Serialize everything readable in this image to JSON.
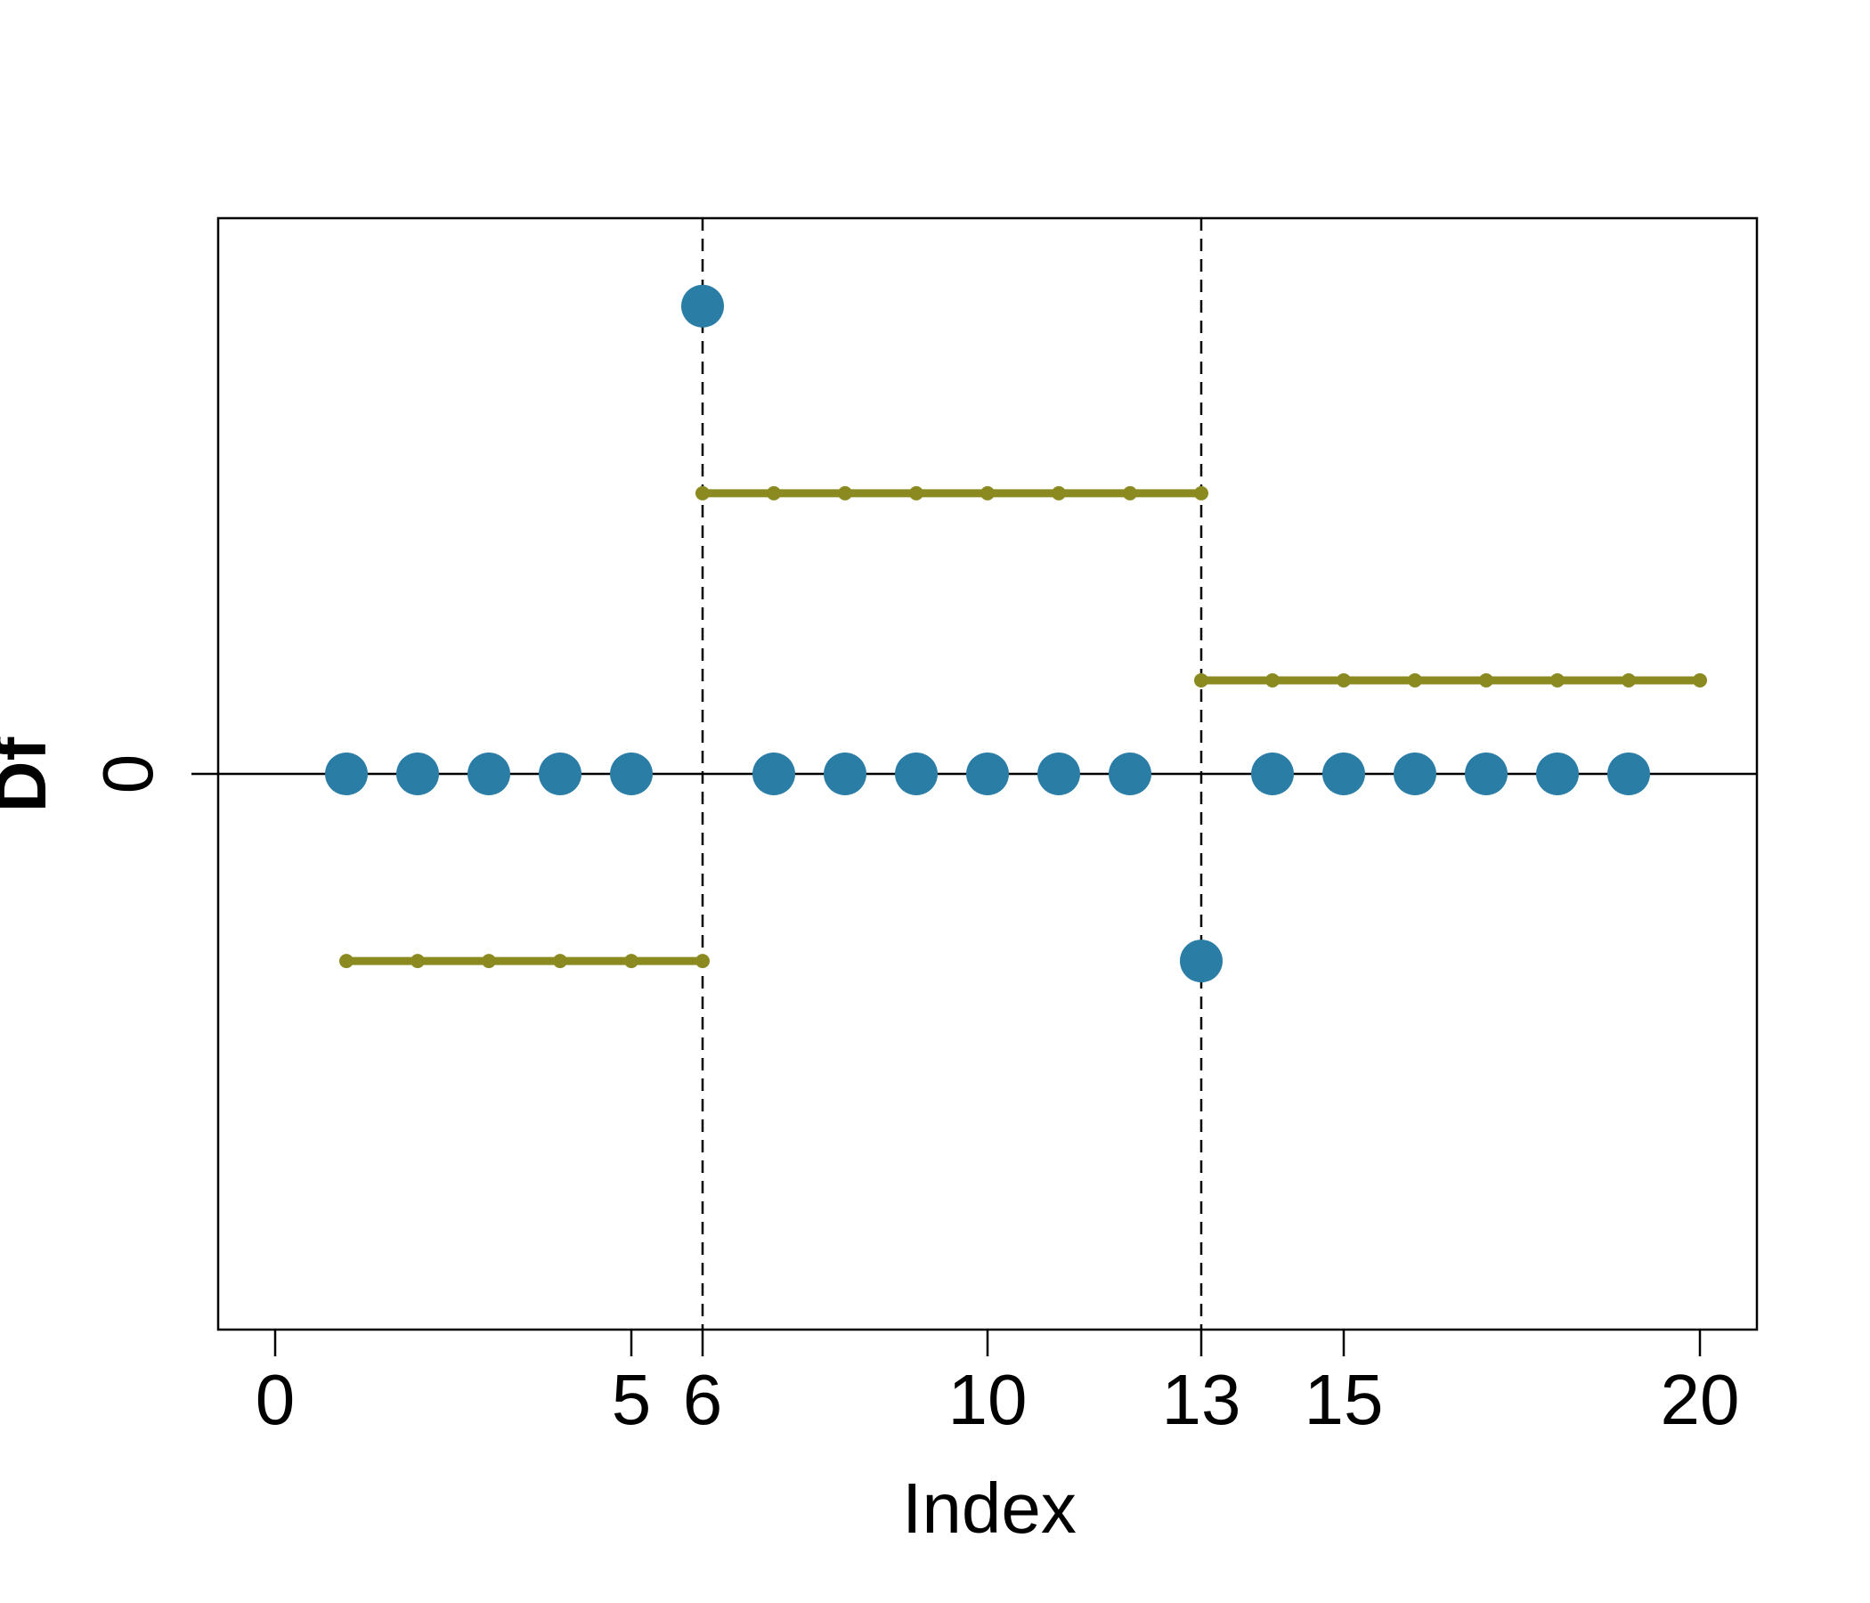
{
  "chart_data": {
    "type": "scatter",
    "x_label": "Index",
    "y_label": "Df",
    "xlim": [
      -0.8,
      20.8
    ],
    "ylim": [
      -5.94,
      5.94
    ],
    "xticks": [
      0,
      5,
      6,
      10,
      13,
      15,
      20
    ],
    "xtick_colors": [
      "#000000",
      "#000000",
      "#e00000",
      "#000000",
      "#e00000",
      "#000000",
      "#000000"
    ],
    "yticks": [
      0
    ],
    "vlines": [
      6,
      13
    ],
    "hlines": [
      0
    ],
    "series": [
      {
        "mode": "markers",
        "color": "#2a7ea6",
        "x": [
          1,
          2,
          3,
          4,
          5,
          6,
          7,
          8,
          9,
          10,
          11,
          12,
          13,
          14,
          15,
          16,
          17,
          18,
          19
        ],
        "values": [
          0,
          0,
          0,
          0,
          0,
          5,
          0,
          0,
          0,
          0,
          0,
          0,
          -2,
          0,
          0,
          0,
          0,
          0,
          0
        ]
      },
      {
        "mode": "lines+markers",
        "color": "#8b8a20",
        "x": [
          1,
          2,
          3,
          4,
          5,
          6
        ],
        "values": [
          -2,
          -2,
          -2,
          -2,
          -2,
          -2
        ]
      },
      {
        "mode": "lines+markers",
        "color": "#8b8a20",
        "x": [
          6,
          7,
          8,
          9,
          10,
          11,
          12,
          13
        ],
        "values": [
          3,
          3,
          3,
          3,
          3,
          3,
          3,
          3
        ]
      },
      {
        "mode": "lines+markers",
        "color": "#8b8a20",
        "x": [
          13,
          14,
          15,
          16,
          17,
          18,
          19,
          20
        ],
        "values": [
          1,
          1,
          1,
          1,
          1,
          1,
          1,
          1
        ]
      }
    ]
  }
}
